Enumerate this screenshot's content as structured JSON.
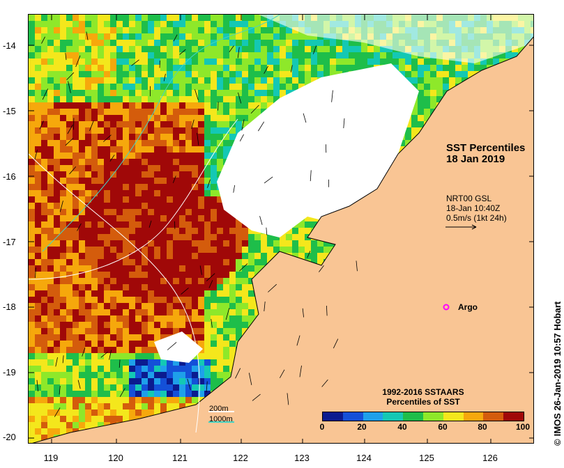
{
  "map": {
    "title_line1": "SST Percentiles",
    "title_line2": "18 Jan 2019",
    "current_source": "NRT00 GSL",
    "current_time": "18-Jan 10:40Z",
    "scale_vector": "0.5m/s (1kt 24h)",
    "argo_label": "Argo",
    "argo_color": "#ff00ff",
    "land_color": "#f9c594",
    "isobath_200": "200m",
    "isobath_1000": "1000m",
    "isobath_200_color": "#ffffff",
    "isobath_1000_color": "#44d4c4"
  },
  "latitudes": [
    "-14",
    "-15",
    "-16",
    "-17",
    "-18",
    "-19",
    "-20"
  ],
  "longitudes": [
    "119",
    "120",
    "121",
    "122",
    "123",
    "124",
    "125",
    "126"
  ],
  "colorbar": {
    "title_line1": "1992-2016 SSTAARS",
    "title_line2": "Percentiles of SST",
    "ticks": [
      "0",
      "20",
      "40",
      "60",
      "80",
      "100"
    ],
    "colors": [
      "#0b1b8f",
      "#1450d8",
      "#1ea0ea",
      "#14c8b4",
      "#1ebe4a",
      "#8ee82a",
      "#f4e71c",
      "#f6a80c",
      "#d45c0c",
      "#a00808"
    ]
  },
  "credit": "IMOS 26-Jan-2019 10:57 Hobart",
  "credit_icon": "copyright-icon"
}
